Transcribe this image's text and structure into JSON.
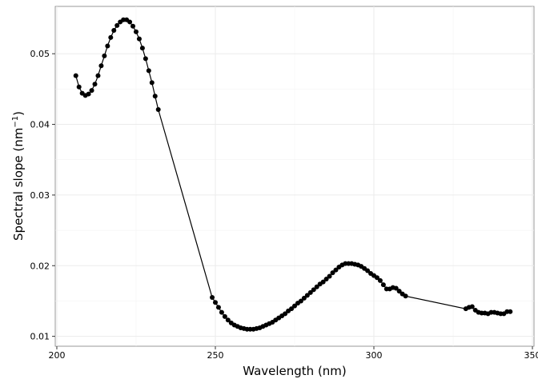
{
  "chart_data": {
    "type": "line",
    "xlabel": "Wavelength (nm)",
    "ylabel": "Spectral slope (nm",
    "ylabel_sup": "−1",
    "ylabel_close": ")",
    "xlim": [
      199.5,
      350.5
    ],
    "ylim": [
      0.0086,
      0.0567
    ],
    "xticks": [
      200,
      250,
      300,
      350
    ],
    "yticks": [
      0.01,
      0.02,
      0.03,
      0.04,
      0.05
    ],
    "xtick_labels": [
      "200",
      "250",
      "300",
      "350"
    ],
    "ytick_labels": [
      "0.01",
      "0.02",
      "0.03",
      "0.04",
      "0.05"
    ],
    "grid": true,
    "markers": true,
    "color": "#000000",
    "x": [
      206,
      207,
      208,
      209,
      210,
      211,
      212,
      213,
      214,
      215,
      216,
      217,
      218,
      219,
      220,
      221,
      222,
      223,
      224,
      225,
      226,
      227,
      228,
      229,
      230,
      231,
      232,
      249,
      250,
      251,
      252,
      253,
      254,
      255,
      256,
      257,
      258,
      259,
      260,
      261,
      262,
      263,
      264,
      265,
      266,
      267,
      268,
      269,
      270,
      271,
      272,
      273,
      274,
      275,
      276,
      277,
      278,
      279,
      280,
      281,
      282,
      283,
      284,
      285,
      286,
      287,
      288,
      289,
      290,
      291,
      292,
      293,
      294,
      295,
      296,
      297,
      298,
      299,
      300,
      301,
      302,
      303,
      304,
      305,
      306,
      307,
      308,
      309,
      310,
      329,
      330,
      331,
      332,
      333,
      334,
      335,
      336,
      337,
      338,
      339,
      340,
      341,
      342,
      343
    ],
    "y": [
      0.0469,
      0.0453,
      0.0444,
      0.0441,
      0.0443,
      0.0448,
      0.0457,
      0.0469,
      0.0483,
      0.0497,
      0.0511,
      0.0523,
      0.0533,
      0.054,
      0.0545,
      0.0548,
      0.0548,
      0.0545,
      0.0539,
      0.0531,
      0.0521,
      0.0508,
      0.0493,
      0.0476,
      0.0459,
      0.044,
      0.0421,
      0.0155,
      0.0148,
      0.0141,
      0.0134,
      0.0128,
      0.0123,
      0.0119,
      0.0116,
      0.0114,
      0.0112,
      0.0111,
      0.011,
      0.011,
      0.011,
      0.0111,
      0.0112,
      0.0114,
      0.0116,
      0.0118,
      0.012,
      0.0123,
      0.0126,
      0.0129,
      0.0132,
      0.0136,
      0.0139,
      0.0143,
      0.0147,
      0.015,
      0.0154,
      0.0158,
      0.0162,
      0.0166,
      0.017,
      0.0174,
      0.0177,
      0.0181,
      0.0185,
      0.019,
      0.0194,
      0.0198,
      0.0201,
      0.0203,
      0.0203,
      0.0203,
      0.0202,
      0.0201,
      0.0199,
      0.0196,
      0.0193,
      0.0189,
      0.0186,
      0.0183,
      0.0179,
      0.0173,
      0.0167,
      0.0167,
      0.0169,
      0.0168,
      0.0164,
      0.016,
      0.0157,
      0.0139,
      0.0141,
      0.0142,
      0.0137,
      0.0134,
      0.0133,
      0.0133,
      0.0132,
      0.0134,
      0.0134,
      0.0133,
      0.0132,
      0.0132,
      0.0135,
      0.0135
    ]
  }
}
